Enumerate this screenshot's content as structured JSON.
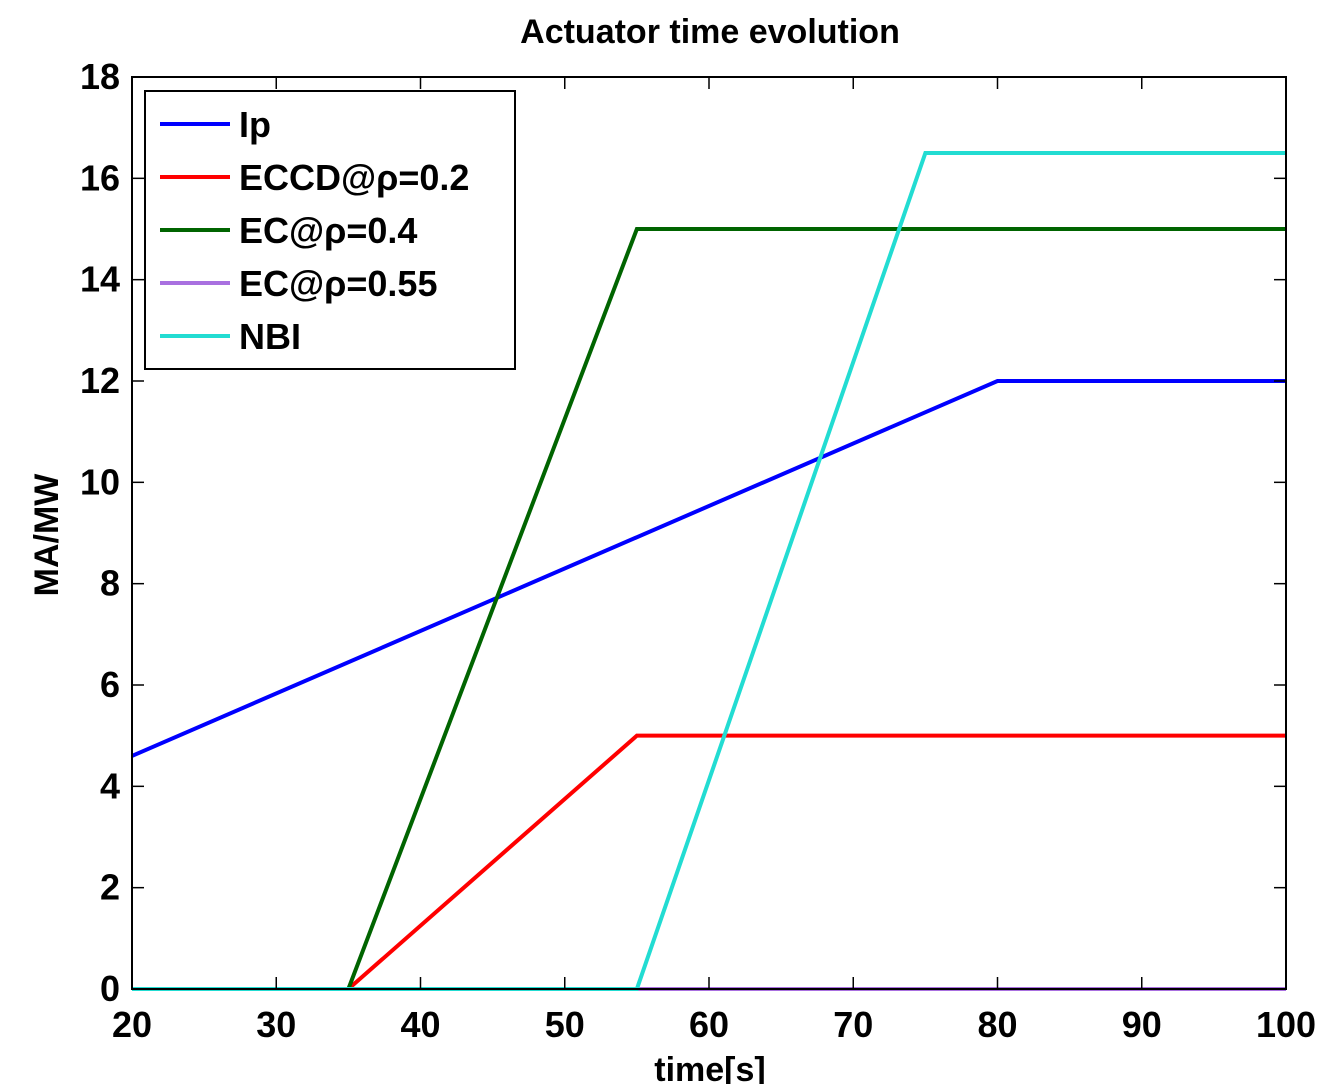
{
  "chart_data": {
    "type": "line",
    "title": "Actuator time evolution",
    "xlabel": "time[s]",
    "ylabel": "MA/MW",
    "xlim": [
      20,
      100
    ],
    "ylim": [
      0,
      18
    ],
    "xticks": [
      20,
      30,
      40,
      50,
      60,
      70,
      80,
      90,
      100
    ],
    "yticks": [
      0,
      2,
      4,
      6,
      8,
      10,
      12,
      14,
      16,
      18
    ],
    "grid": false,
    "legend_position": "top-left",
    "series": [
      {
        "name": "Ip",
        "color": "#0000ff",
        "x": [
          20,
          80,
          100
        ],
        "y": [
          4.6,
          12,
          12
        ]
      },
      {
        "name": "ECCD@ρ=0.2",
        "color": "#ff0000",
        "x": [
          20,
          35,
          55,
          100
        ],
        "y": [
          0,
          0,
          5,
          5
        ]
      },
      {
        "name": "EC@ρ=0.4",
        "color": "#006400",
        "x": [
          20,
          35,
          55,
          100
        ],
        "y": [
          0,
          0,
          15,
          15
        ]
      },
      {
        "name": "EC@ρ=0.55",
        "color": "#a970e0",
        "x": [
          20,
          100
        ],
        "y": [
          0,
          0
        ]
      },
      {
        "name": "NBI",
        "color": "#22dcd2",
        "x": [
          20,
          55,
          75,
          100
        ],
        "y": [
          0,
          0,
          16.5,
          16.5
        ]
      }
    ]
  }
}
